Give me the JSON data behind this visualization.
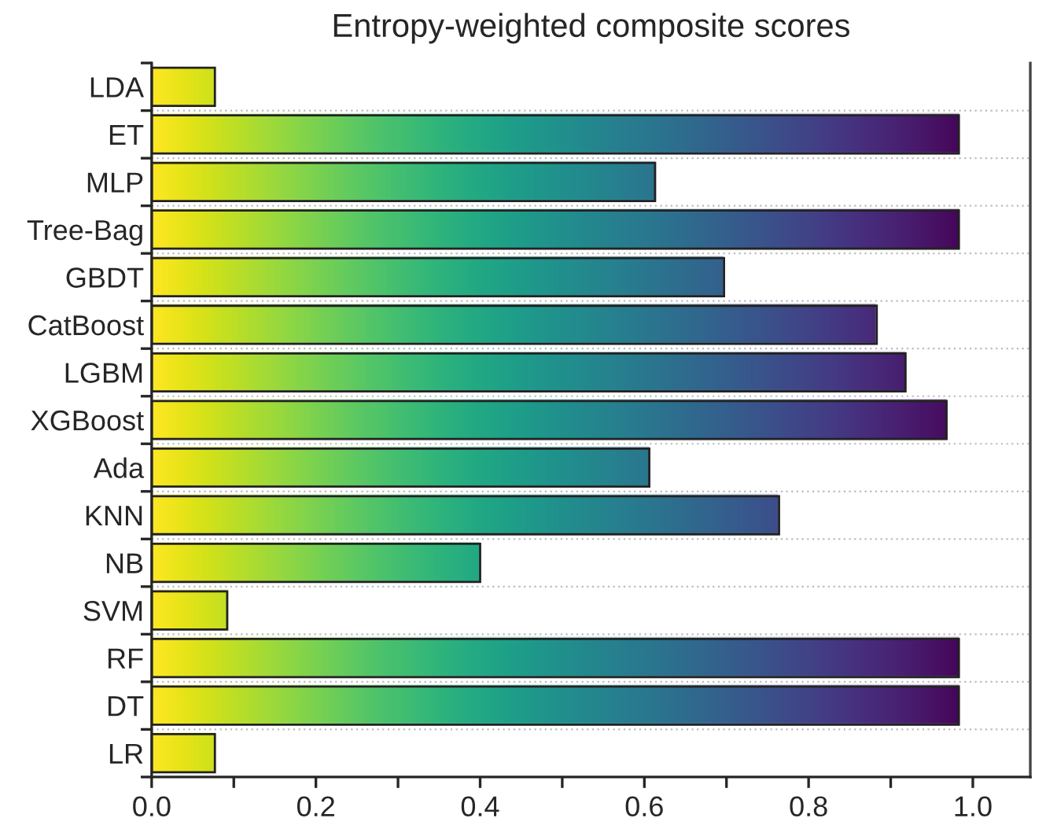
{
  "chart_data": {
    "type": "bar",
    "orientation": "horizontal",
    "title": "Entropy-weighted composite scores",
    "categories": [
      "LDA",
      "ET",
      "MLP",
      "Tree-Bag",
      "GBDT",
      "CatBoost",
      "LGBM",
      "XGBoost",
      "Ada",
      "KNN",
      "NB",
      "SVM",
      "RF",
      "DT",
      "LR"
    ],
    "values": [
      0.077,
      0.983,
      0.613,
      0.983,
      0.697,
      0.883,
      0.918,
      0.968,
      0.606,
      0.764,
      0.4,
      0.092,
      0.983,
      0.983,
      0.077
    ],
    "xlim": [
      0,
      1.07
    ],
    "xticks": [
      {
        "value": 0,
        "label": "0.0"
      },
      {
        "value": 0.1,
        "label": null
      },
      0.2,
      {
        "value": 0.3,
        "label": null
      },
      0.4,
      {
        "value": 0.5,
        "label": null
      },
      0.6,
      {
        "value": 0.7,
        "label": null
      },
      0.8,
      {
        "value": 0.9,
        "label": null
      },
      {
        "value": 1,
        "label": "1.0"
      }
    ],
    "grid": "y"
  }
}
